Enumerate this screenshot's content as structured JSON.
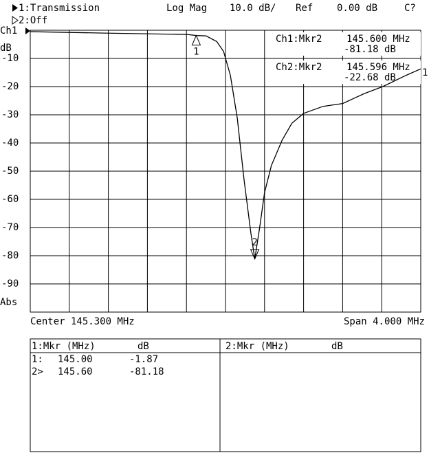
{
  "chart_data": {
    "type": "line",
    "header": {
      "ch1": "1:Transmission",
      "format": "Log Mag",
      "scale": "10.0 dB/",
      "ref": "Ref",
      "ref_value": "0.00 dB",
      "status": "C?",
      "ch2": "2:Off"
    },
    "y_labels": {
      "channel": "Ch1",
      "unit": "dB",
      "mode": "Abs"
    },
    "x_labels": {
      "center": "Center 145.300 MHz",
      "span": "Span 4.000 MHz"
    },
    "xlim": [
      143.3,
      147.3
    ],
    "ylim": [
      -100,
      0
    ],
    "yticks": [
      -10,
      -20,
      -30,
      -40,
      -50,
      -60,
      -70,
      -80,
      -90
    ],
    "grid": true,
    "series": [
      {
        "name": "1",
        "color": "#000000",
        "x": [
          143.3,
          144.05,
          144.91,
          145.0,
          145.1,
          145.21,
          145.28,
          145.35,
          145.42,
          145.49,
          145.56,
          145.6,
          145.65,
          145.7,
          145.77,
          145.88,
          145.98,
          146.1,
          146.3,
          146.5,
          146.72,
          146.91,
          147.15,
          147.3
        ],
        "values": [
          -0.5,
          -1,
          -1.5,
          -1.87,
          -2,
          -4,
          -7.5,
          -16,
          -31,
          -53,
          -72,
          -81.18,
          -70,
          -57.6,
          -48,
          -39,
          -33,
          -29.5,
          -27,
          -26,
          -22.5,
          -20,
          -16,
          -13.7
        ]
      }
    ],
    "markers": [
      {
        "label": "1",
        "x": 145.0,
        "value": -1.87
      },
      {
        "label": "2",
        "x": 145.6,
        "value": -81.18
      }
    ],
    "readouts": [
      {
        "name": "Ch1:Mkr2",
        "freq": "145.600 MHz",
        "level": "-81.18 dB"
      },
      {
        "name": "Ch2:Mkr2",
        "freq": "145.596 MHz",
        "level": "-22.68 dB"
      }
    ]
  },
  "marker_table": {
    "left": {
      "header": "1:Mkr (MHz)",
      "unit": "dB",
      "rows": [
        [
          "1:",
          "145.00",
          "-1.87"
        ],
        [
          "2>",
          "145.60",
          "-81.18"
        ]
      ]
    },
    "right": {
      "header": "2:Mkr (MHz)",
      "unit": "dB"
    }
  }
}
